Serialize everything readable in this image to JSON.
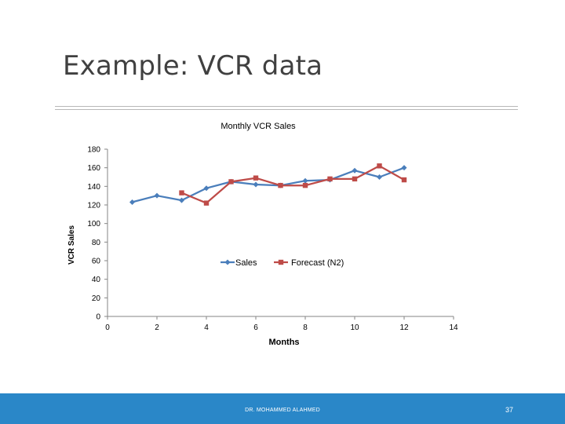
{
  "slide": {
    "title": "Example: VCR data",
    "footer_author": "DR. MOHAMMED ALAHMED",
    "page_number": "37"
  },
  "colors": {
    "sales": "#4a7ebb",
    "forecast": "#be4b48",
    "footer": "#2a87c8"
  },
  "chart_data": {
    "type": "line",
    "title": "Monthly VCR Sales",
    "xlabel": "Months",
    "ylabel": "VCR Sales",
    "xlim": [
      0,
      14
    ],
    "ylim": [
      0,
      180
    ],
    "xticks": [
      0,
      2,
      4,
      6,
      8,
      10,
      12,
      14
    ],
    "yticks": [
      0,
      20,
      40,
      60,
      80,
      100,
      120,
      140,
      160,
      180
    ],
    "grid": false,
    "legend_position": "inside-middle",
    "series": [
      {
        "name": "Sales",
        "marker": "diamond",
        "x": [
          1,
          2,
          3,
          4,
          5,
          6,
          7,
          8,
          9,
          10,
          11,
          12
        ],
        "y": [
          123,
          130,
          125,
          138,
          145,
          142,
          141,
          146,
          147,
          157,
          150,
          160
        ]
      },
      {
        "name": "Forecast (N2)",
        "marker": "square",
        "x": [
          3,
          4,
          5,
          6,
          7,
          8,
          9,
          10,
          11,
          12
        ],
        "y": [
          133,
          122,
          145,
          149,
          141,
          141,
          148,
          148,
          162,
          147
        ]
      }
    ]
  }
}
